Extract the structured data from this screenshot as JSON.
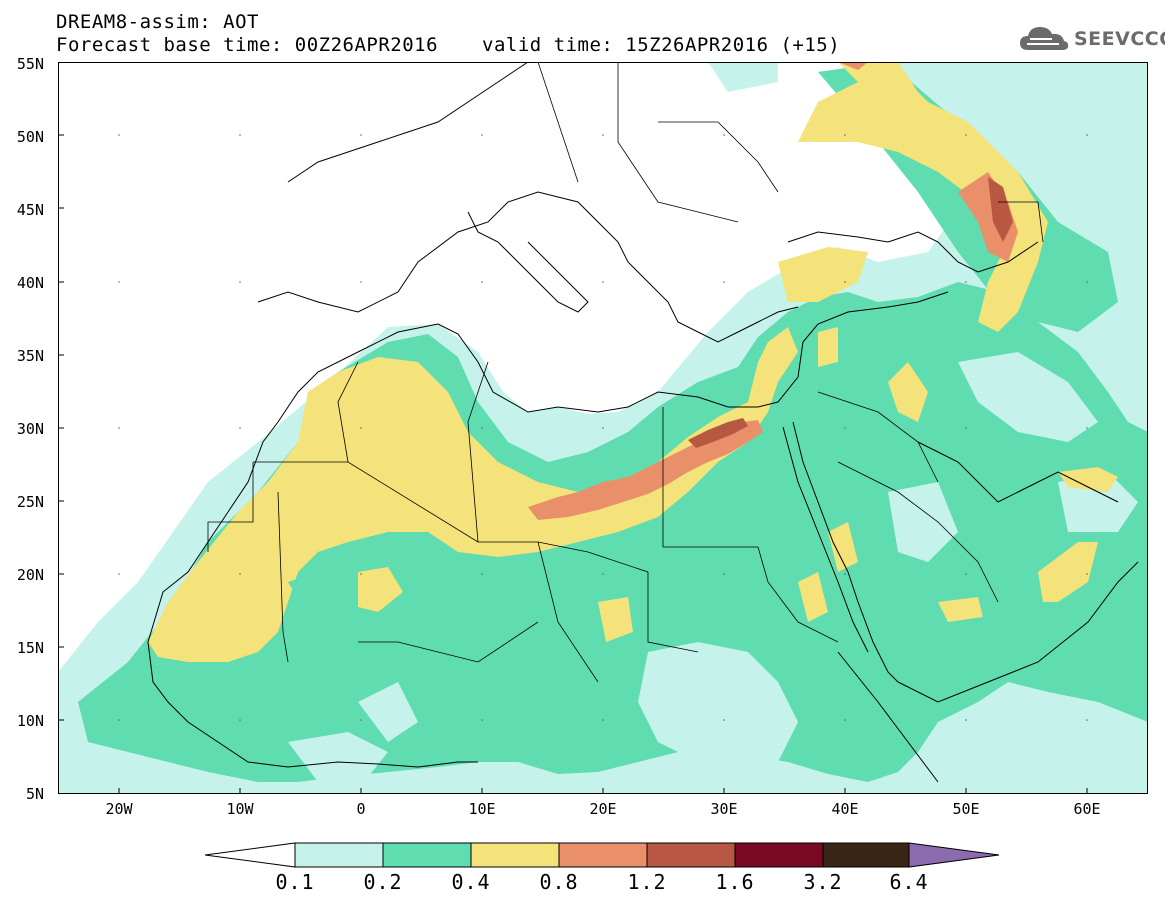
{
  "header": {
    "line1": "DREAM8-assim: AOT",
    "line2": "Forecast base time: 00Z26APR2016",
    "valid": "valid time: 15Z26APR2016 (+15)"
  },
  "logo": {
    "text": "SEEVCCC",
    "icon": "cloud-icon"
  },
  "map": {
    "lat_labels": [
      "55N",
      "50N",
      "45N",
      "40N",
      "35N",
      "30N",
      "25N",
      "20N",
      "15N",
      "10N",
      "5N"
    ],
    "lon_labels": [
      "20W",
      "10W",
      "0",
      "10E",
      "20E",
      "30E",
      "40E",
      "50E",
      "60E"
    ],
    "colors": {
      "c1": "#c6f2ec",
      "c2": "#5fdcb0",
      "c3": "#f4e27a",
      "c4": "#e9906a",
      "c5": "#b85742",
      "c6": "#7a0a24",
      "c7": "#3a2415",
      "c8": "#8c6ab0"
    }
  },
  "colorbar": {
    "labels": [
      "0.1",
      "0.2",
      "0.4",
      "0.8",
      "1.2",
      "1.6",
      "3.2",
      "6.4"
    ]
  }
}
